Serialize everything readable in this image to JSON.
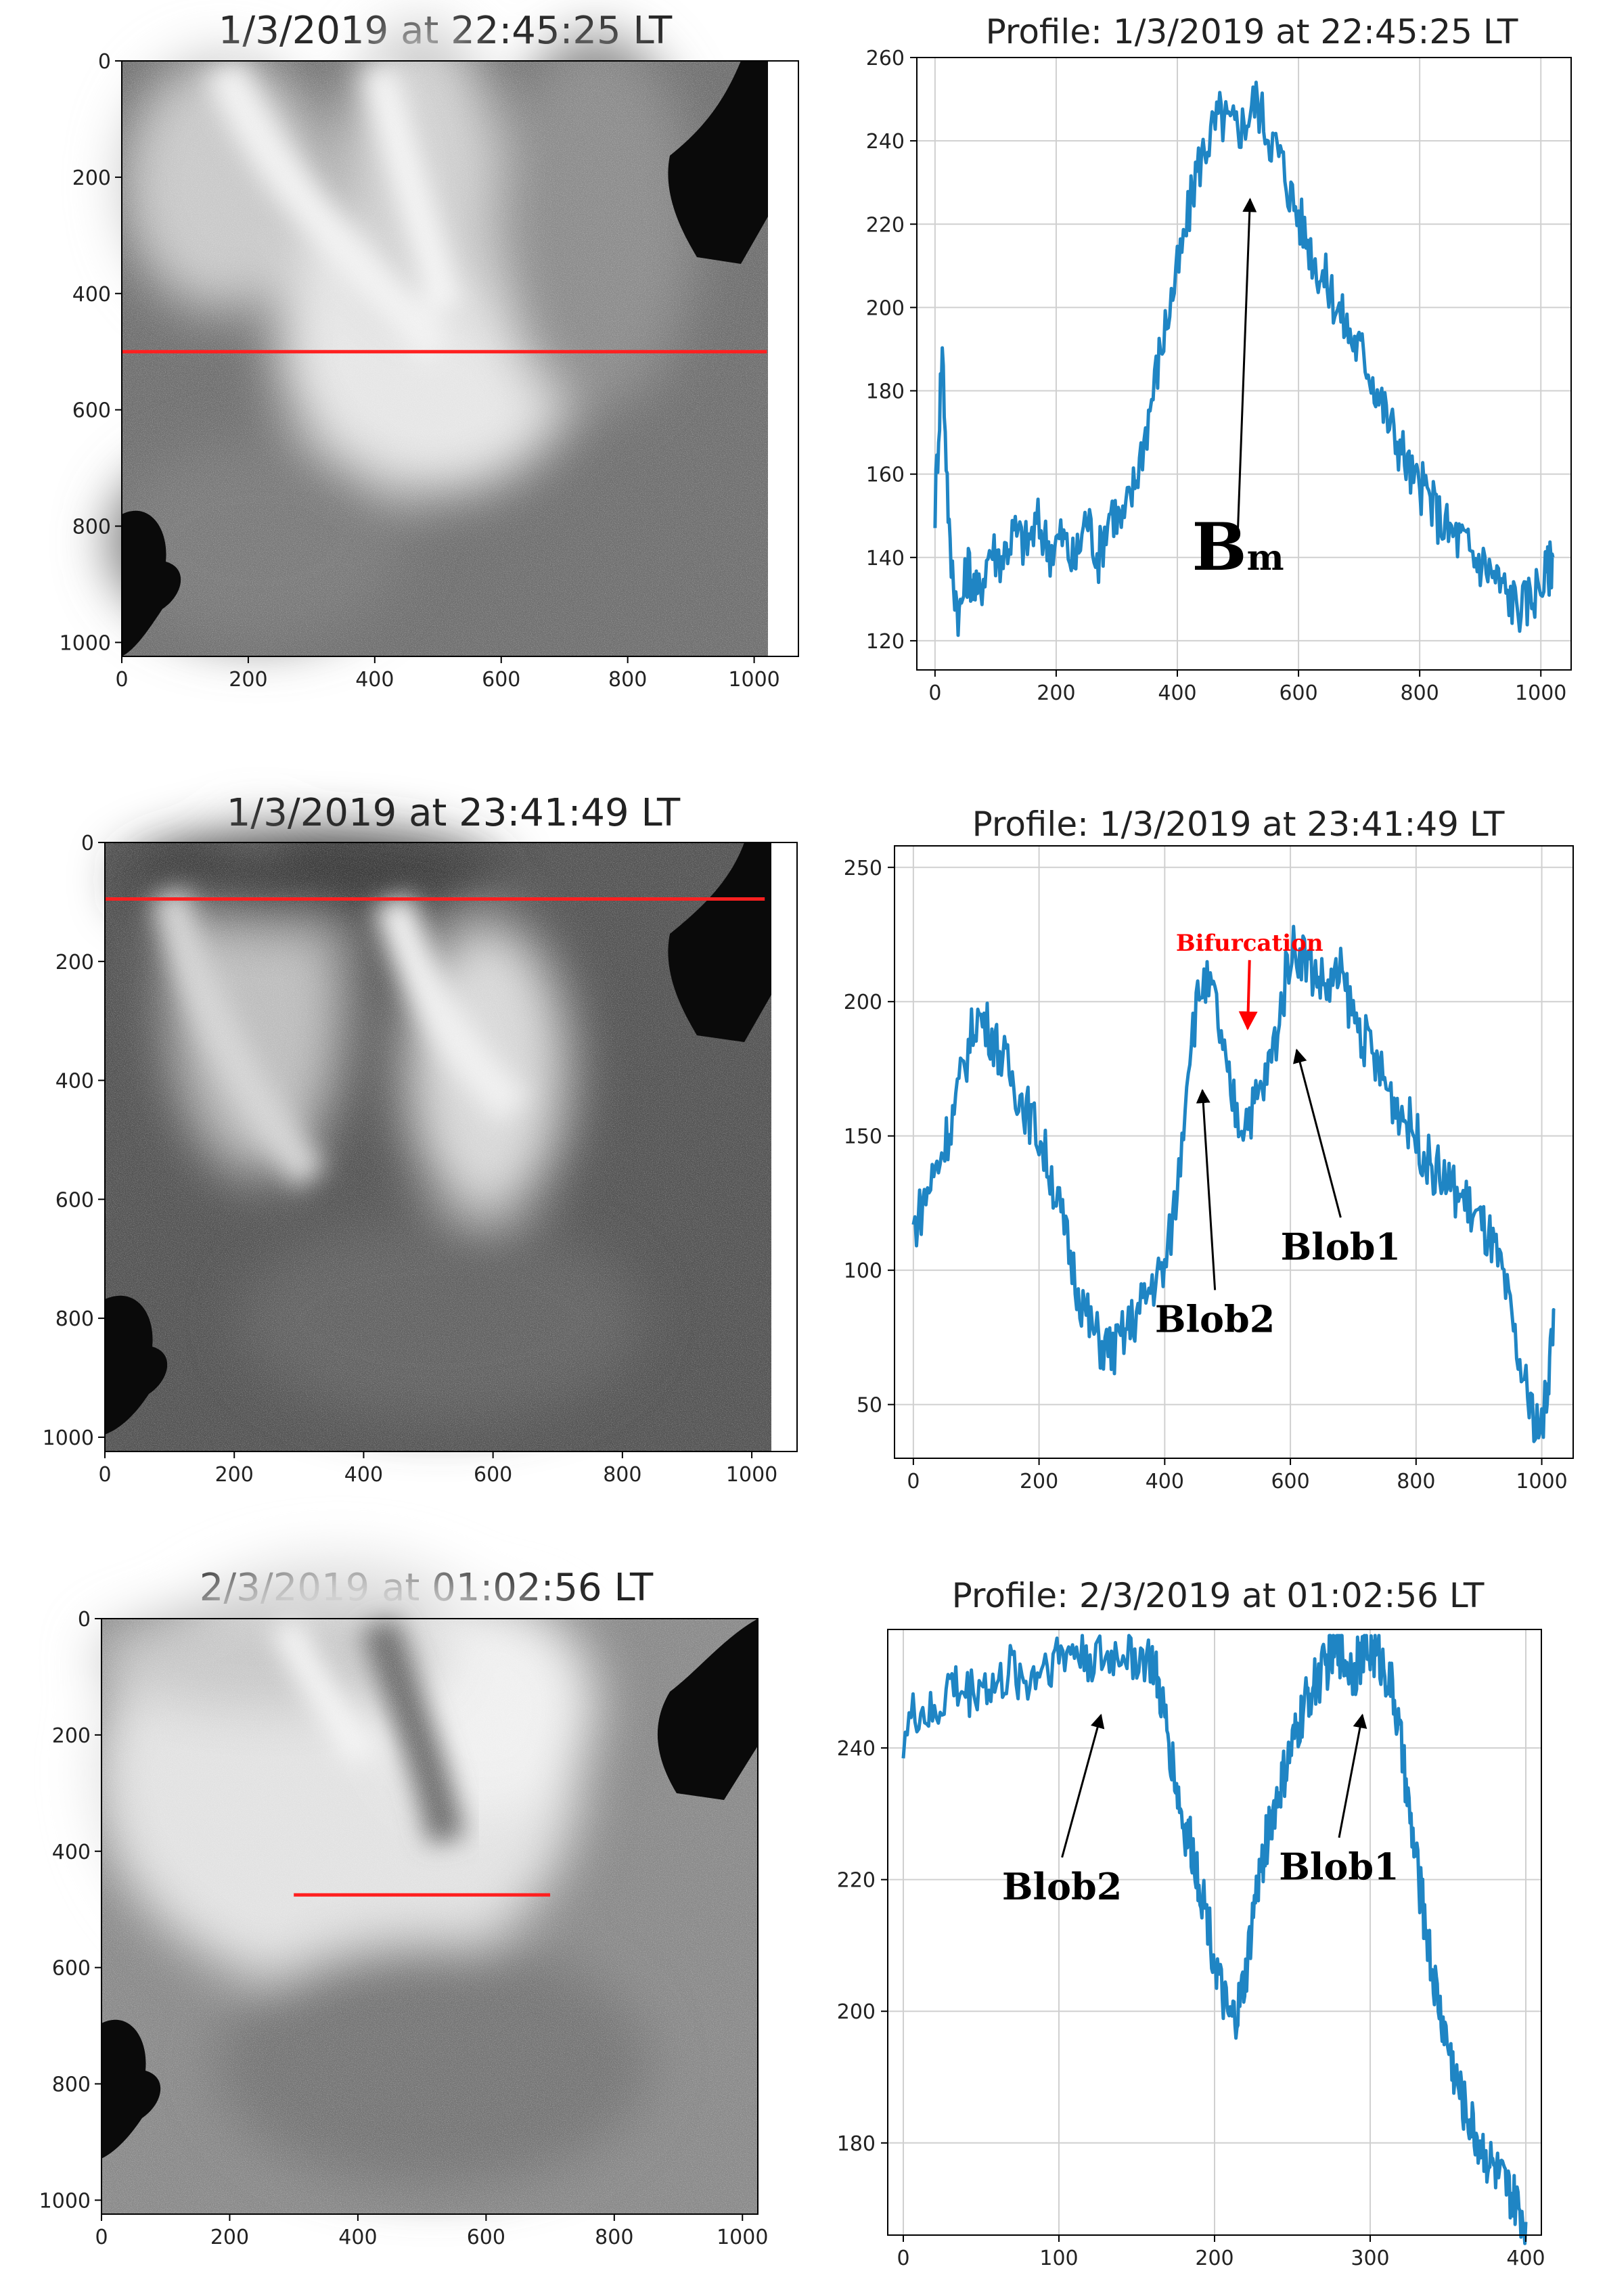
{
  "chart_data": [
    {
      "type": "image",
      "title": "1/3/2019 at 22:45:25 LT",
      "xlim": [
        0,
        1024
      ],
      "ylim": [
        1024,
        0
      ],
      "xticks": [
        0,
        200,
        400,
        600,
        800,
        1000
      ],
      "yticks": [
        0,
        200,
        400,
        600,
        800,
        1000
      ],
      "profile_line": {
        "y": 500,
        "x_start": 0,
        "x_end": 1024,
        "color": "#ff2020"
      }
    },
    {
      "type": "line",
      "title": "Profile: 1/3/2019 at 22:45:25 LT",
      "xlim": [
        -30,
        1050
      ],
      "ylim": [
        113,
        260
      ],
      "xticks": [
        0,
        200,
        400,
        600,
        800,
        1000
      ],
      "yticks": [
        120,
        140,
        160,
        180,
        200,
        220,
        240,
        260
      ],
      "grid": true,
      "series": [
        {
          "color": "#1f85c4",
          "x": [
            0,
            12,
            25,
            40,
            55,
            70,
            90,
            110,
            130,
            150,
            170,
            190,
            210,
            230,
            250,
            270,
            290,
            310,
            330,
            350,
            370,
            390,
            410,
            430,
            450,
            470,
            490,
            510,
            530,
            550,
            570,
            590,
            610,
            630,
            650,
            670,
            690,
            710,
            730,
            750,
            770,
            790,
            810,
            830,
            850,
            870,
            890,
            910,
            930,
            950,
            970,
            990,
            1010,
            1020
          ],
          "y": [
            152,
            190,
            140,
            126,
            138,
            130,
            142,
            140,
            146,
            143,
            148,
            142,
            145,
            138,
            150,
            140,
            152,
            148,
            158,
            172,
            188,
            202,
            215,
            232,
            240,
            246,
            243,
            244,
            250,
            242,
            236,
            226,
            218,
            210,
            205,
            198,
            192,
            188,
            180,
            172,
            166,
            158,
            156,
            150,
            146,
            144,
            140,
            138,
            134,
            130,
            128,
            132,
            136,
            140
          ]
        }
      ],
      "annotations": [
        {
          "text": "B",
          "sub": "m",
          "x": 500,
          "y": 137,
          "arrow_to": [
            520,
            226
          ]
        }
      ]
    },
    {
      "type": "image",
      "title": "1/3/2019 at 23:41:49 LT",
      "xlim": [
        0,
        1024
      ],
      "ylim": [
        1024,
        0
      ],
      "xticks": [
        0,
        200,
        400,
        600,
        800,
        1000
      ],
      "yticks": [
        0,
        200,
        400,
        600,
        800,
        1000
      ],
      "profile_line": {
        "y": 95,
        "x_start": 0,
        "x_end": 1024,
        "color": "#ff2020"
      }
    },
    {
      "type": "line",
      "title": "Profile: 1/3/2019 at 23:41:49 LT",
      "xlim": [
        -30,
        1050
      ],
      "ylim": [
        30,
        258
      ],
      "xticks": [
        0,
        200,
        400,
        600,
        800,
        1000
      ],
      "yticks": [
        50,
        100,
        150,
        200,
        250
      ],
      "grid": true,
      "series": [
        {
          "color": "#1f85c4",
          "x": [
            0,
            20,
            40,
            60,
            80,
            100,
            120,
            140,
            160,
            180,
            200,
            220,
            240,
            260,
            280,
            300,
            320,
            340,
            360,
            380,
            400,
            420,
            440,
            460,
            480,
            500,
            520,
            540,
            560,
            580,
            600,
            620,
            640,
            660,
            680,
            700,
            720,
            740,
            760,
            780,
            800,
            820,
            840,
            860,
            880,
            900,
            920,
            940,
            960,
            980,
            1000,
            1010,
            1020
          ],
          "y": [
            115,
            128,
            140,
            155,
            175,
            195,
            190,
            180,
            170,
            160,
            150,
            135,
            115,
            95,
            80,
            72,
            70,
            78,
            85,
            95,
            100,
            130,
            185,
            208,
            200,
            170,
            155,
            160,
            170,
            190,
            220,
            218,
            210,
            205,
            210,
            195,
            185,
            175,
            165,
            158,
            150,
            140,
            135,
            130,
            125,
            118,
            110,
            95,
            70,
            50,
            40,
            60,
            85
          ]
        }
      ],
      "annotations": [
        {
          "text": "Bifurcation",
          "color": "#ff0000",
          "x": 535,
          "y": 219,
          "arrow_to": [
            532,
            190
          ]
        },
        {
          "text": "Blob1",
          "x": 680,
          "y": 104,
          "arrow_to": [
            610,
            182
          ]
        },
        {
          "text": "Blob2",
          "x": 480,
          "y": 77,
          "arrow_to": [
            460,
            167
          ]
        }
      ]
    },
    {
      "type": "image",
      "title": "2/3/2019 at 01:02:56 LT",
      "xlim": [
        0,
        1024
      ],
      "ylim": [
        1024,
        0
      ],
      "xticks": [
        0,
        200,
        400,
        600,
        800,
        1000
      ],
      "yticks": [
        0,
        200,
        400,
        600,
        800,
        1000
      ],
      "profile_line": {
        "y": 475,
        "x_start": 300,
        "x_end": 700,
        "color": "#ff2020"
      }
    },
    {
      "type": "line",
      "title": "Profile: 2/3/2019 at 01:02:56 LT",
      "xlim": [
        -10,
        410
      ],
      "ylim": [
        166,
        258
      ],
      "xticks": [
        0,
        100,
        200,
        300,
        400
      ],
      "yticks": [
        180,
        200,
        220,
        240
      ],
      "grid": true,
      "series": [
        {
          "color": "#1f85c4",
          "x": [
            0,
            10,
            20,
            30,
            40,
            50,
            60,
            70,
            80,
            90,
            100,
            110,
            120,
            130,
            140,
            150,
            160,
            165,
            170,
            175,
            180,
            185,
            190,
            195,
            200,
            205,
            210,
            215,
            220,
            225,
            230,
            235,
            240,
            245,
            250,
            255,
            260,
            265,
            270,
            275,
            280,
            285,
            290,
            295,
            300,
            305,
            310,
            315,
            320,
            325,
            330,
            335,
            340,
            345,
            350,
            355,
            360,
            365,
            370,
            375,
            380,
            385,
            390,
            395,
            400
          ],
          "y": [
            242,
            246,
            244,
            250,
            248,
            250,
            249,
            252,
            250,
            253,
            254,
            255,
            254,
            253,
            255,
            254,
            253,
            248,
            242,
            235,
            228,
            225,
            220,
            215,
            208,
            202,
            198,
            200,
            205,
            215,
            222,
            228,
            232,
            236,
            240,
            244,
            248,
            250,
            252,
            254,
            255,
            253,
            252,
            254,
            255,
            254,
            252,
            248,
            240,
            230,
            222,
            214,
            206,
            200,
            195,
            190,
            186,
            183,
            180,
            178,
            176,
            174,
            172,
            170,
            168
          ]
        }
      ],
      "annotations": [
        {
          "text": "Blob2",
          "x": 102,
          "y": 217,
          "arrow_to": [
            127,
            245
          ]
        },
        {
          "text": "Blob1",
          "x": 280,
          "y": 220,
          "arrow_to": [
            295,
            245
          ]
        }
      ]
    }
  ]
}
